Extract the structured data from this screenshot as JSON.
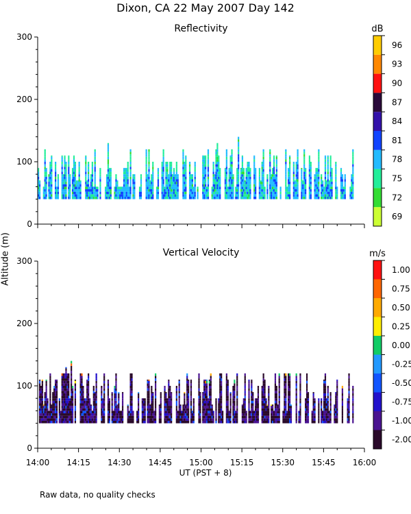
{
  "title": "Dixon, CA 22 May 2007  Day 142",
  "footer_note": "Raw data, no quality checks",
  "shared_ylabel": "Altitude (m)",
  "shared_xlabel": "UT  (PST + 8)",
  "chart_data": [
    {
      "type": "heatmap",
      "title": "Reflectivity",
      "x_range": [
        "14:00",
        "16:00"
      ],
      "x_ticks": [
        "14:00",
        "14:15",
        "14:30",
        "14:45",
        "15:00",
        "15:15",
        "15:30",
        "15:45",
        "16:00"
      ],
      "ylim": [
        0,
        300
      ],
      "y_ticks": [
        0,
        100,
        200,
        300
      ],
      "colorbar": {
        "unit": "dB",
        "labels": [
          "69",
          "72",
          "75",
          "78",
          "81",
          "84",
          "87",
          "90",
          "93",
          "96"
        ],
        "colors": [
          "#ccff33",
          "#33dd33",
          "#22ee99",
          "#22bbff",
          "#1144ff",
          "#3311aa",
          "#2a0a3a",
          "#ff1111",
          "#ff8800",
          "#ffcc00"
        ]
      },
      "data_extent": {
        "altitude_min_m": 40,
        "altitude_max_m": 140,
        "time_start": "14:00",
        "time_end": "15:56"
      }
    },
    {
      "type": "heatmap",
      "title": "Vertical Velocity",
      "x_range": [
        "14:00",
        "16:00"
      ],
      "x_ticks": [
        "14:00",
        "14:15",
        "14:30",
        "14:45",
        "15:00",
        "15:15",
        "15:30",
        "15:45",
        "16:00"
      ],
      "ylim": [
        0,
        300
      ],
      "y_ticks": [
        0,
        100,
        200,
        300
      ],
      "colorbar": {
        "unit": "m/s",
        "labels": [
          "-2.00",
          "-1.00",
          "-0.75",
          "-0.50",
          "-0.25",
          "0.00",
          "0.25",
          "0.50",
          "0.75",
          "1.00"
        ],
        "colors": [
          "#2a0a2a",
          "#4a1390",
          "#2211cc",
          "#1155ff",
          "#2299ff",
          "#11cc66",
          "#ffee00",
          "#ffaa00",
          "#ff6600",
          "#ff1111"
        ]
      },
      "data_extent": {
        "altitude_min_m": 40,
        "altitude_max_m": 140,
        "time_start": "14:00",
        "time_end": "15:56"
      }
    }
  ]
}
